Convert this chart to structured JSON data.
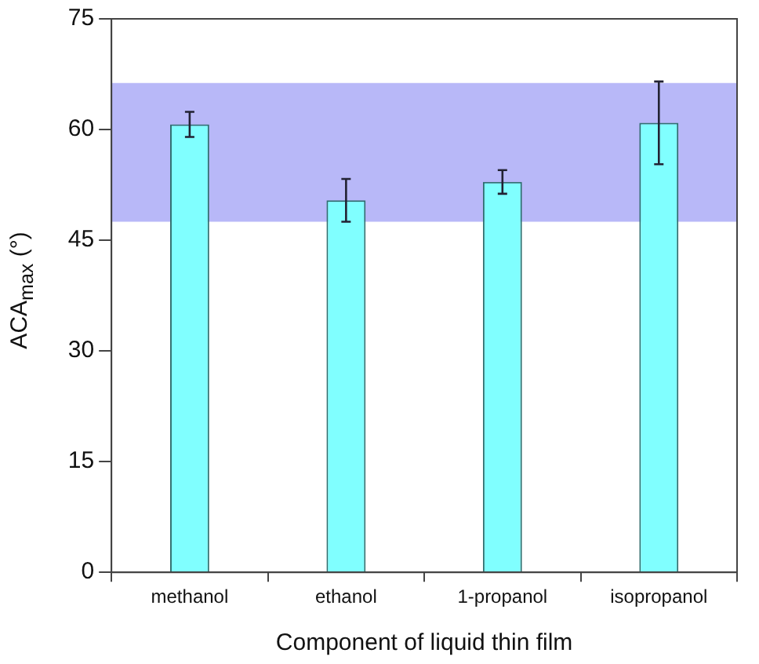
{
  "chart_data": {
    "type": "bar",
    "xlabel": "Component of liquid thin film",
    "ylabel": "ACA$_{max}$ (°)",
    "categories": [
      "methanol",
      "ethanol",
      "1-propanol",
      "isopropanol"
    ],
    "values": [
      60.7,
      50.4,
      52.9,
      60.9
    ],
    "errors": [
      1.7,
      2.9,
      1.6,
      5.6
    ],
    "color": "#80ffff",
    "ylim": [
      0,
      75
    ],
    "yticks": [
      0,
      15,
      30,
      45,
      60,
      75
    ],
    "grid": false,
    "bands": [
      {
        "axis": "y",
        "from": 47.5,
        "to": 66.3,
        "color": "#b8b8f8"
      }
    ]
  }
}
